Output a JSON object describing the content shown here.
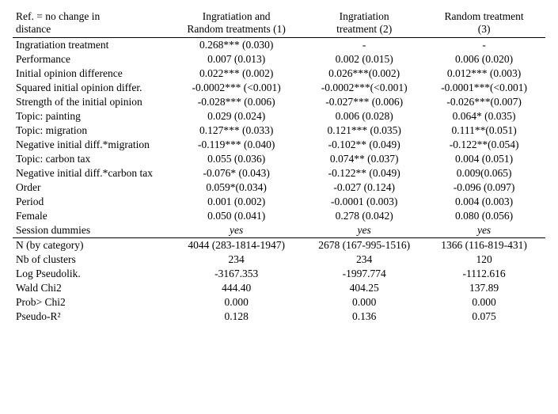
{
  "header": {
    "ref_line1": "Ref.  = no change in",
    "ref_line2": "distance",
    "col1_line1": "Ingratiation and",
    "col1_line2": "Random treatments (1)",
    "col2_line1": "Ingratiation",
    "col2_line2": "treatment (2)",
    "col3_line1": "Random treatment",
    "col3_line2": "(3)"
  },
  "rows": [
    {
      "label": "Ingratiation treatment",
      "c1": "0.268*** (0.030)",
      "c2": "-",
      "c3": "-"
    },
    {
      "label": "Performance",
      "c1": "0.007 (0.013)",
      "c2": "0.002 (0.015)",
      "c3": "0.006 (0.020)"
    },
    {
      "label": "Initial opinion difference",
      "c1": "0.022*** (0.002)",
      "c2": "0.026***(0.002)",
      "c3": "0.012*** (0.003)"
    },
    {
      "label": "Squared initial opinion differ.",
      "c1": "-0.0002*** (<0.001)",
      "c2": "-0.0002***(<0.001)",
      "c3": "-0.0001***(<0.001)"
    },
    {
      "label": "Strength of the initial opinion",
      "c1": "-0.028*** (0.006)",
      "c2": "-0.027*** (0.006)",
      "c3": "-0.026***(0.007)"
    },
    {
      "label": "Topic: painting",
      "c1": "0.029  (0.024)",
      "c2": "0.006 (0.028)",
      "c3": "0.064* (0.035)"
    },
    {
      "label": "Topic: migration",
      "c1": "0.127*** (0.033)",
      "c2": "0.121*** (0.035)",
      "c3": "0.111**(0.051)"
    },
    {
      "label": "Negative initial diff.*migration",
      "c1": "-0.119*** (0.040)",
      "c2": "-0.102** (0.049)",
      "c3": "-0.122**(0.054)"
    },
    {
      "label": "Topic: carbon tax",
      "c1": "0.055  (0.036)",
      "c2": "0.074** (0.037)",
      "c3": "0.004 (0.051)"
    },
    {
      "label": "Negative initial diff.*carbon tax",
      "c1": "-0.076* (0.043)",
      "c2": "-0.122** (0.049)",
      "c3": "0.009(0.065)"
    },
    {
      "label": "Order",
      "c1": "0.059*(0.034)",
      "c2": "-0.027 (0.124)",
      "c3": "-0.096 (0.097)"
    },
    {
      "label": "Period",
      "c1": "0.001 (0.002)",
      "c2": "-0.0001 (0.003)",
      "c3": "0.004 (0.003)"
    },
    {
      "label": "Female",
      "c1": "0.050 (0.041)",
      "c2": "0.278 (0.042)",
      "c3": "0.080 (0.056)"
    },
    {
      "label": "Session dummies",
      "c1": "yes",
      "c2": "yes",
      "c3": "yes",
      "italic": true
    }
  ],
  "footer": [
    {
      "label": "N (by category)",
      "c1": "4044 (283-1814-1947)",
      "c2": "2678 (167-995-1516)",
      "c3": "1366 (116-819-431)"
    },
    {
      "label": "Nb of clusters",
      "c1": "234",
      "c2": "234",
      "c3": "120"
    },
    {
      "label": "Log Pseudolik.",
      "c1": "-3167.353",
      "c2": "-1997.774",
      "c3": "-1112.616"
    },
    {
      "label": "Wald Chi2",
      "c1": "444.40",
      "c2": "404.25",
      "c3": "137.89"
    },
    {
      "label": "Prob> Chi2",
      "c1": "0.000",
      "c2": "0.000",
      "c3": "0.000"
    },
    {
      "label": "Pseudo-R²",
      "c1": "0.128",
      "c2": "0.136",
      "c3": "0.075"
    }
  ]
}
